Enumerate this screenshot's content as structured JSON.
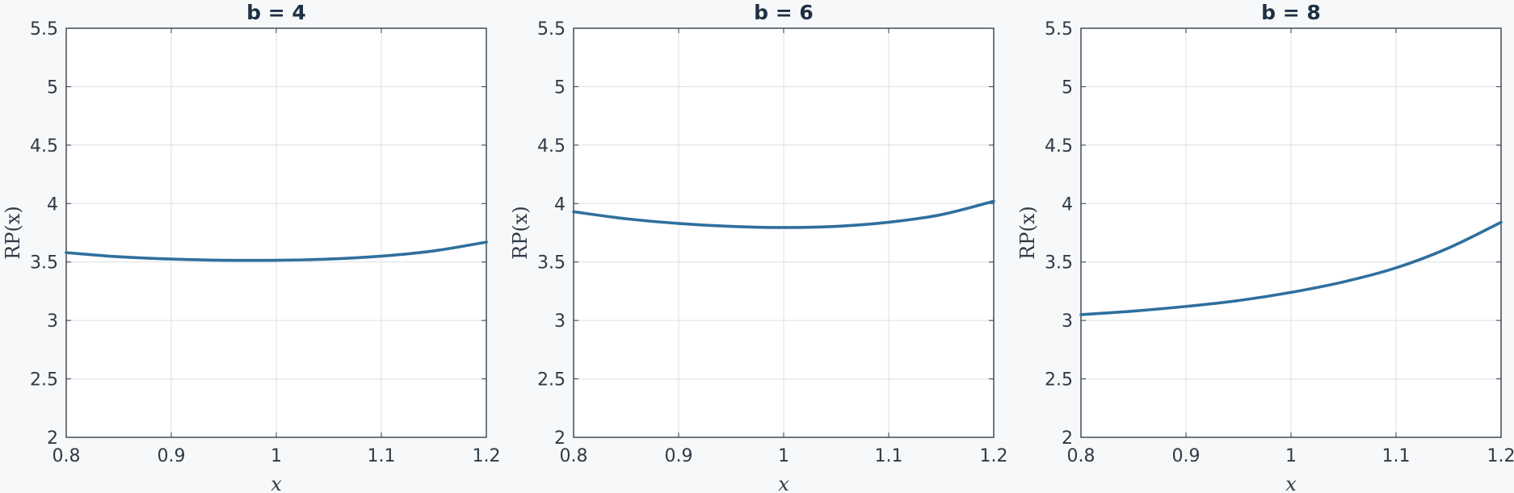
{
  "colors": {
    "background": "#f7f8f9",
    "series": "#2f6f9e",
    "axis": "#2f3a47",
    "grid": "#dcdfe3"
  },
  "chart_data": [
    {
      "type": "line",
      "title": "b = 4",
      "xlabel": "x",
      "ylabel": "RP(x)",
      "xlim": [
        0.8,
        1.2
      ],
      "ylim": [
        2,
        5.5
      ],
      "xticks": [
        "0.8",
        "0.9",
        "1",
        "1.1",
        "1.2"
      ],
      "yticks": [
        "2",
        "2.5",
        "3",
        "3.5",
        "4",
        "4.5",
        "5",
        "5.5"
      ],
      "grid": true,
      "x": [
        0.8,
        0.85,
        0.9,
        0.95,
        1.0,
        1.05,
        1.1,
        1.15,
        1.2
      ],
      "series": [
        {
          "values": [
            3.58,
            3.545,
            3.525,
            3.515,
            3.515,
            3.525,
            3.55,
            3.595,
            3.67
          ]
        }
      ]
    },
    {
      "type": "line",
      "title": "b = 6",
      "xlabel": "x",
      "ylabel": "RP(x)",
      "xlim": [
        0.8,
        1.2
      ],
      "ylim": [
        2,
        5.5
      ],
      "xticks": [
        "0.8",
        "0.9",
        "1",
        "1.1",
        "1.2"
      ],
      "yticks": [
        "2",
        "2.5",
        "3",
        "3.5",
        "4",
        "4.5",
        "5",
        "5.5"
      ],
      "grid": true,
      "x": [
        0.8,
        0.85,
        0.9,
        0.95,
        1.0,
        1.05,
        1.1,
        1.15,
        1.2
      ],
      "series": [
        {
          "values": [
            3.93,
            3.87,
            3.83,
            3.805,
            3.795,
            3.805,
            3.84,
            3.905,
            4.02
          ]
        }
      ]
    },
    {
      "type": "line",
      "title": "b = 8",
      "xlabel": "x",
      "ylabel": "RP(x)",
      "xlim": [
        0.8,
        1.2
      ],
      "ylim": [
        2,
        5.5
      ],
      "xticks": [
        "0.8",
        "0.9",
        "1",
        "1.1",
        "1.2"
      ],
      "yticks": [
        "2",
        "2.5",
        "3",
        "3.5",
        "4",
        "4.5",
        "5",
        "5.5"
      ],
      "grid": true,
      "x": [
        0.8,
        0.85,
        0.9,
        0.95,
        1.0,
        1.05,
        1.1,
        1.15,
        1.2
      ],
      "series": [
        {
          "values": [
            3.05,
            3.08,
            3.12,
            3.17,
            3.24,
            3.33,
            3.45,
            3.62,
            3.84
          ]
        }
      ]
    }
  ]
}
